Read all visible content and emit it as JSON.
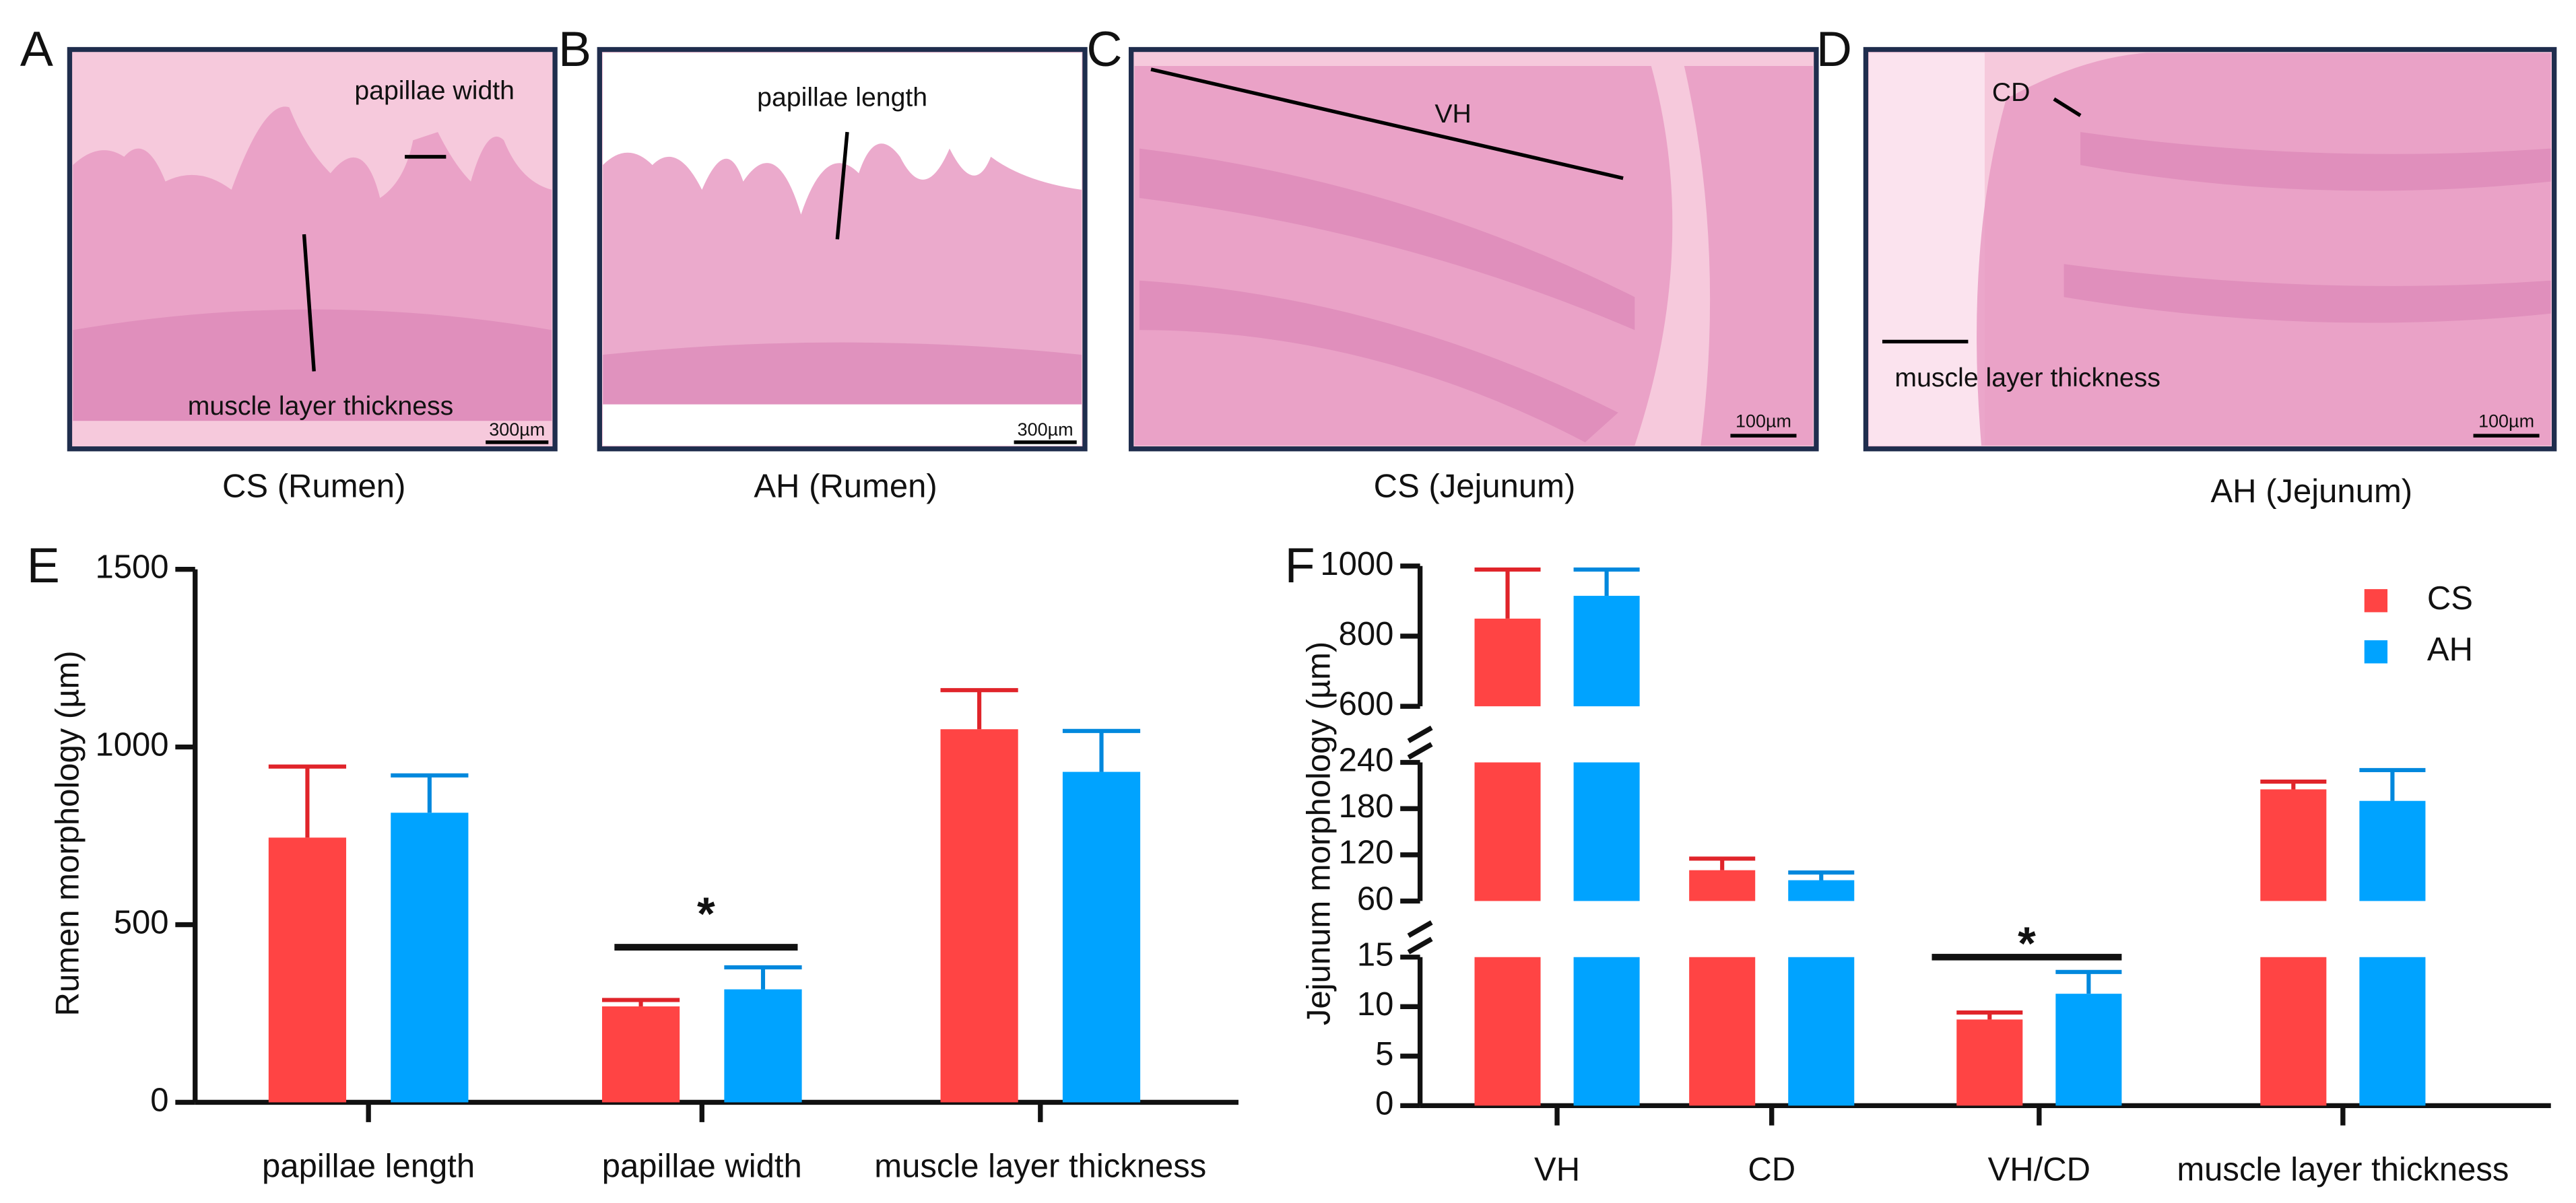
{
  "panels": [
    {
      "letter": "A",
      "caption": "CS (Rumen)",
      "labels": [
        "papillae width",
        "muscle layer thickness"
      ],
      "scale_bar": "300µm"
    },
    {
      "letter": "B",
      "caption": "AH (Rumen)",
      "labels": [
        "papillae length"
      ],
      "scale_bar": "300µm"
    },
    {
      "letter": "C",
      "caption": "CS (Jejunum)",
      "labels": [
        "VH"
      ],
      "scale_bar": "100µm"
    },
    {
      "letter": "D",
      "caption": "AH (Jejunum)",
      "labels": [
        "CD",
        "muscle layer thickness"
      ],
      "scale_bar": "100µm"
    }
  ],
  "chart_data": [
    {
      "type": "bar",
      "letter": "E",
      "ylabel": "Rumen morphology (µm)",
      "categories": [
        "papillae length",
        "papillae width",
        "muscle layer thickness"
      ],
      "ylim": [
        0,
        1500
      ],
      "yticks": [
        0,
        500,
        1000,
        1500
      ],
      "series": [
        {
          "name": "CS",
          "color": "#ff4444",
          "values": [
            745,
            270,
            1050
          ],
          "errors": [
            200,
            18,
            110
          ]
        },
        {
          "name": "AH",
          "color": "#00a3ff",
          "values": [
            815,
            318,
            930
          ],
          "errors": [
            105,
            62,
            115
          ]
        }
      ],
      "annotations": [
        "*"
      ]
    },
    {
      "type": "bar",
      "letter": "F",
      "ylabel": "Jejunum morphology (µm)",
      "categories": [
        "VH",
        "CD",
        "VH/CD",
        "muscle layer thickness"
      ],
      "y_segments": [
        {
          "ylim": [
            0,
            15
          ],
          "yticks": [
            0,
            5,
            10,
            15
          ]
        },
        {
          "ylim": [
            60,
            240
          ],
          "yticks": [
            60,
            120,
            180,
            240
          ]
        },
        {
          "ylim": [
            600,
            1000
          ],
          "yticks": [
            600,
            800,
            1000
          ]
        }
      ],
      "series": [
        {
          "name": "CS",
          "color": "#ff4444",
          "values": [
            850,
            100,
            8.7,
            205
          ],
          "errors": [
            140,
            15,
            0.7,
            10
          ]
        },
        {
          "name": "AH",
          "color": "#00a3ff",
          "values": [
            915,
            87,
            11.3,
            190
          ],
          "errors": [
            75,
            10,
            2.2,
            40
          ]
        }
      ],
      "legend": "top-right",
      "annotations": [
        "*"
      ]
    }
  ]
}
